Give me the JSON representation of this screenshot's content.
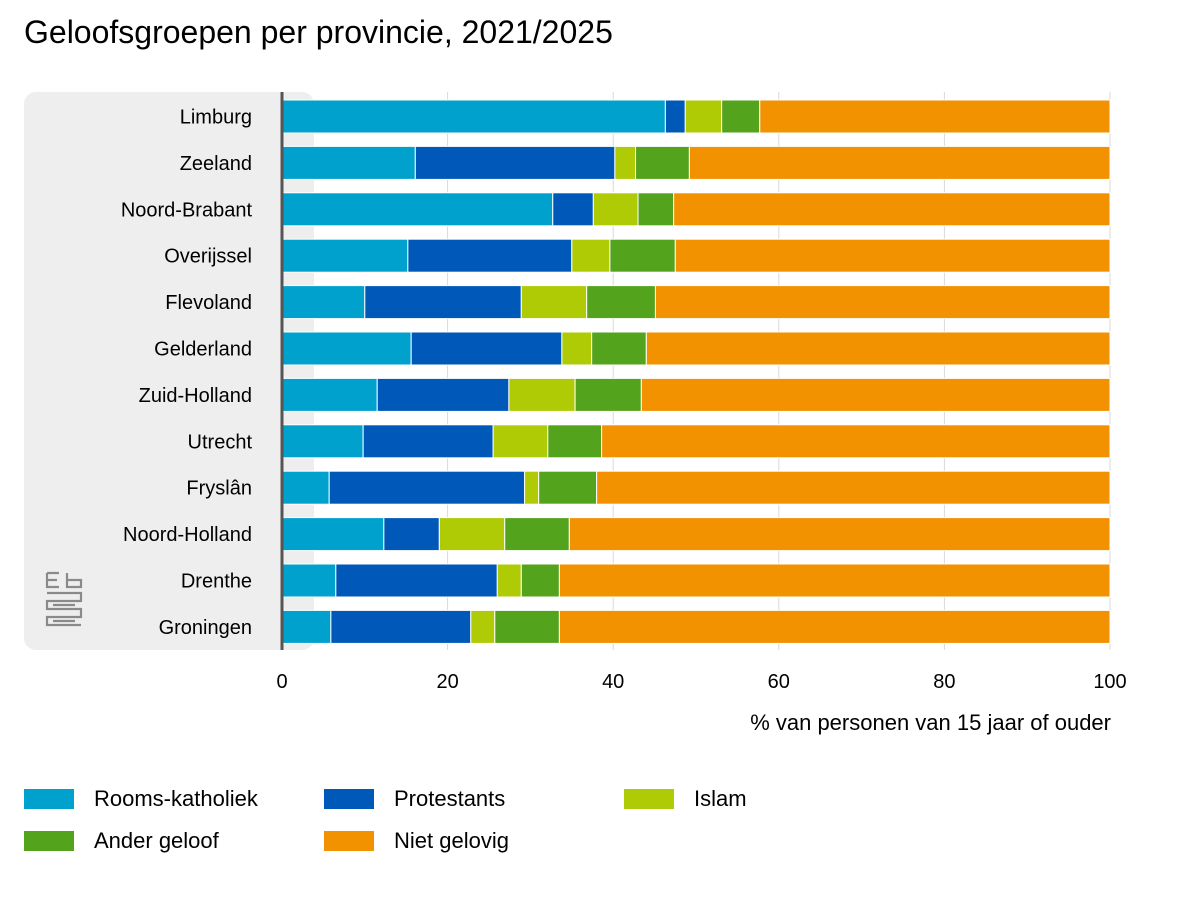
{
  "title": "Geloofsgroepen per provincie, 2021/2025",
  "chart_data": {
    "type": "bar",
    "orientation": "horizontal",
    "stacked": true,
    "title": "Geloofsgroepen per provincie, 2021/2025",
    "xlabel": "% van personen van 15 jaar of ouder",
    "ylabel": "",
    "xlim": [
      0,
      100
    ],
    "x_ticks": [
      "0",
      "20",
      "40",
      "60",
      "80",
      "100"
    ],
    "grid": true,
    "legend_position": "bottom",
    "categories": [
      "Limburg",
      "Zeeland",
      "Noord-Brabant",
      "Overijssel",
      "Flevoland",
      "Gelderland",
      "Zuid-Holland",
      "Utrecht",
      "Fryslân",
      "Noord-Holland",
      "Drenthe",
      "Groningen"
    ],
    "series": [
      {
        "name": "Rooms-katholiek",
        "color": "#00a1cd",
        "values": [
          46.3,
          16.1,
          32.7,
          15.2,
          10.0,
          15.6,
          11.5,
          9.8,
          5.7,
          12.3,
          6.5,
          5.9
        ]
      },
      {
        "name": "Protestants",
        "color": "#0058b8",
        "values": [
          2.4,
          24.1,
          4.9,
          19.8,
          18.9,
          18.2,
          15.9,
          15.7,
          23.6,
          6.7,
          19.5,
          16.9
        ]
      },
      {
        "name": "Islam",
        "color": "#afcb05",
        "values": [
          4.4,
          2.5,
          5.4,
          4.6,
          7.9,
          3.6,
          8.0,
          6.6,
          1.7,
          7.9,
          2.9,
          2.9
        ]
      },
      {
        "name": "Ander geloof",
        "color": "#53a31d",
        "values": [
          4.6,
          6.5,
          4.3,
          7.9,
          8.3,
          6.6,
          8.0,
          6.5,
          7.0,
          7.8,
          4.6,
          7.8
        ]
      },
      {
        "name": "Niet gelovig",
        "color": "#f39200",
        "values": [
          42.3,
          50.8,
          52.7,
          52.5,
          54.9,
          56.0,
          56.6,
          61.4,
          62.0,
          65.3,
          66.5,
          66.5
        ]
      }
    ]
  },
  "legend": [
    {
      "label": "Rooms-katholiek",
      "color": "#00a1cd"
    },
    {
      "label": "Protestants",
      "color": "#0058b8"
    },
    {
      "label": "Islam",
      "color": "#afcb05"
    },
    {
      "label": "Ander geloof",
      "color": "#53a31d"
    },
    {
      "label": "Niet gelovig",
      "color": "#f39200"
    }
  ],
  "logo_icon": "cbs-logo-icon"
}
